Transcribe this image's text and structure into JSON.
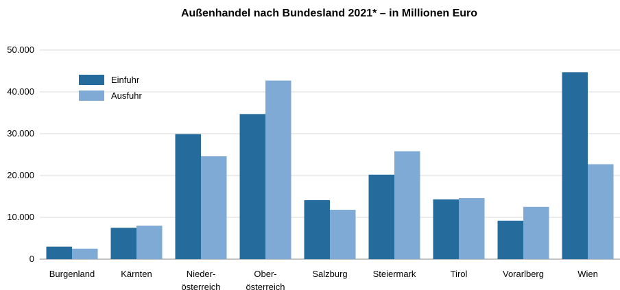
{
  "chart_data": {
    "type": "bar",
    "title": "Außenhandel nach Bundesland 2021*  – in Millionen Euro",
    "categories": [
      [
        "Burgenland"
      ],
      [
        "Kärnten"
      ],
      [
        "Nieder-",
        "österreich"
      ],
      [
        "Ober-",
        "österreich"
      ],
      [
        "Salzburg"
      ],
      [
        "Steiermark"
      ],
      [
        "Tirol"
      ],
      [
        "Vorarlberg"
      ],
      [
        "Wien"
      ]
    ],
    "series": [
      {
        "name": "Einfuhr",
        "color": "#256b9c",
        "values": [
          3000,
          7500,
          29900,
          34700,
          14100,
          20200,
          14300,
          9200,
          44700
        ]
      },
      {
        "name": "Ausfuhr",
        "color": "#7faad6",
        "values": [
          2500,
          8000,
          24600,
          42700,
          11800,
          25800,
          14600,
          12500,
          22700
        ]
      }
    ],
    "ylim": [
      0,
      50000
    ],
    "yticks": [
      0,
      10000,
      20000,
      30000,
      40000,
      50000
    ],
    "ytick_labels": [
      "0",
      "10.000",
      "20.000",
      "30.000",
      "40.000",
      "50.000"
    ],
    "grid": true,
    "legend_position": "top-left"
  }
}
